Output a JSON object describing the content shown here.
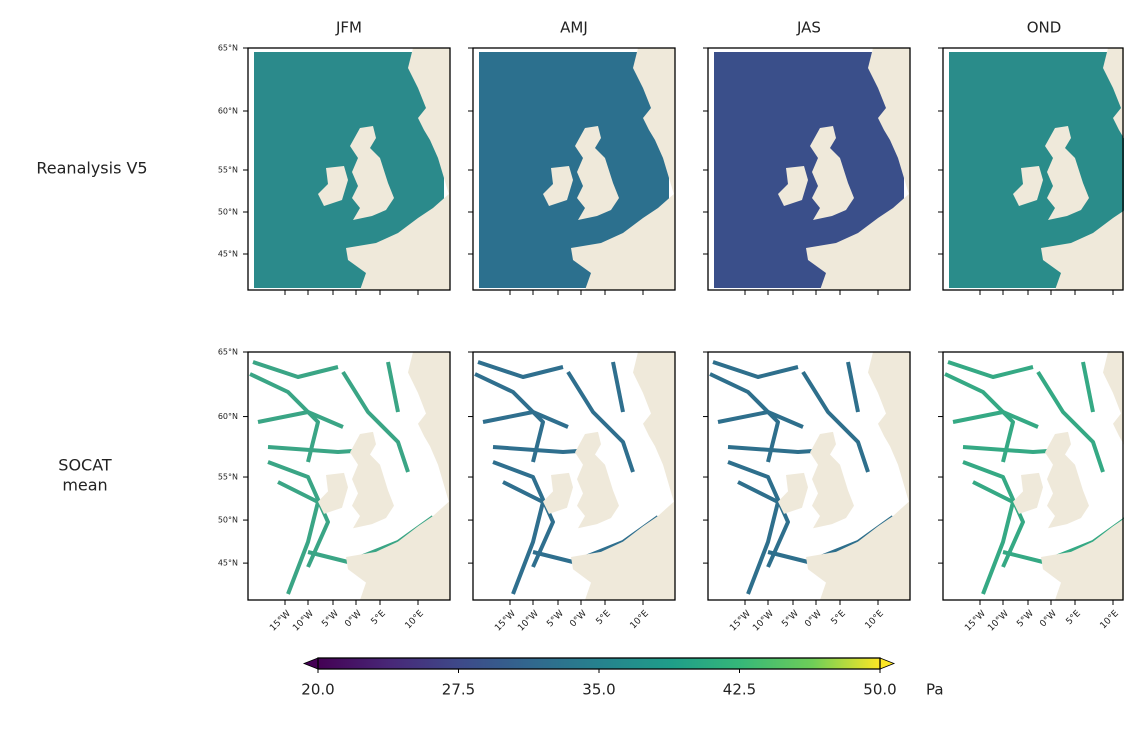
{
  "columns": [
    "JFM",
    "AMJ",
    "JAS",
    "OND"
  ],
  "rows": [
    [
      "Reanalysis V5"
    ],
    [
      "SOCAT",
      "mean"
    ]
  ],
  "lat_ticks": [
    "65°N",
    "60°N",
    "55°N",
    "50°N",
    "45°N"
  ],
  "lon_ticks": [
    "15°W",
    "10°W",
    "5°W",
    "0°W",
    "5°E",
    "10°E"
  ],
  "colorbar": {
    "lim": [
      20,
      50
    ],
    "unit": "Pa",
    "colormap": "viridis",
    "extend": "both",
    "ticks": [
      {
        "value": 20,
        "label": "20.0"
      },
      {
        "value": 27.5,
        "label": "27.5"
      },
      {
        "value": 35,
        "label": "35.0"
      },
      {
        "value": 42.5,
        "label": "42.5"
      },
      {
        "value": 50,
        "label": "50.0"
      }
    ]
  }
}
